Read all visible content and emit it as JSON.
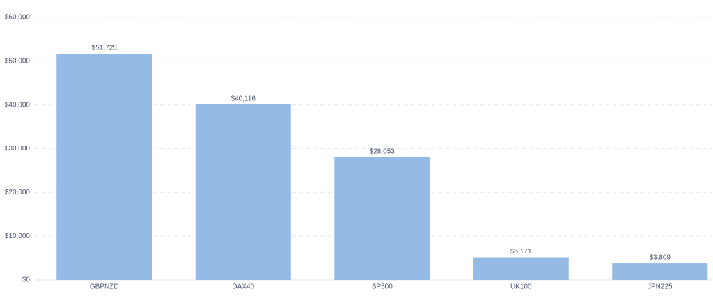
{
  "chart_data": {
    "type": "bar",
    "categories": [
      "GBPNZD",
      "DAX40",
      "SP500",
      "UK100",
      "JPN225"
    ],
    "values": [
      51725,
      40116,
      28053,
      5171,
      3809
    ],
    "value_labels": [
      "$51,725",
      "$40,116",
      "$28,053",
      "$5,171",
      "$3,809"
    ],
    "color": "#93bbe6",
    "ylim": [
      0,
      60000
    ],
    "yticks": [
      {
        "value": 0,
        "label": "$0"
      },
      {
        "value": 10000,
        "label": "$10,000"
      },
      {
        "value": 20000,
        "label": "$20,000"
      },
      {
        "value": 30000,
        "label": "$30,000"
      },
      {
        "value": 40000,
        "label": "$40,000"
      },
      {
        "value": 50000,
        "label": "$50,000"
      },
      {
        "value": 60000,
        "label": "$60,000"
      }
    ],
    "grid": true
  }
}
